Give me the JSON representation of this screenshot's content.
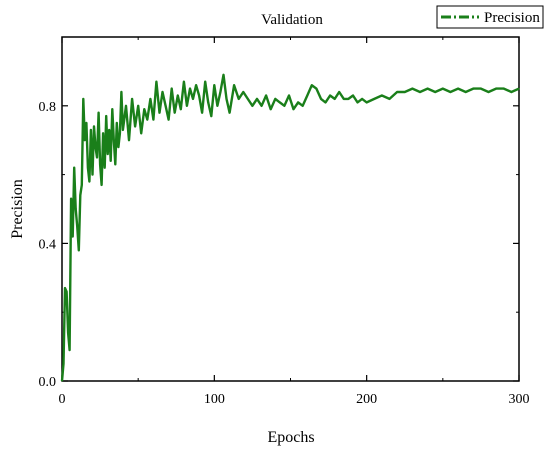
{
  "chart_data": {
    "type": "line",
    "title": "Validation",
    "xlabel": "Epochs",
    "ylabel": "Precision",
    "xlim": [
      0,
      300
    ],
    "ylim": [
      0.0,
      1.0
    ],
    "x_ticks": [
      0,
      100,
      200,
      300
    ],
    "y_ticks": [
      0.0,
      0.4,
      0.8
    ],
    "x_tick_labels": [
      "0",
      "100",
      "200",
      "300"
    ],
    "y_tick_labels": [
      "0.0",
      "0.4",
      "0.8"
    ],
    "grid": false,
    "legend_position": "top-right",
    "series": [
      {
        "name": "Precision",
        "color": "#1a7f1a",
        "line_style": "dash-dot",
        "x": [
          0,
          1,
          2,
          3,
          4,
          5,
          6,
          7,
          8,
          9,
          10,
          11,
          12,
          13,
          14,
          15,
          16,
          17,
          18,
          19,
          20,
          21,
          22,
          23,
          24,
          25,
          26,
          27,
          28,
          29,
          30,
          31,
          32,
          33,
          34,
          35,
          36,
          37,
          38,
          39,
          40,
          42,
          44,
          46,
          48,
          50,
          52,
          54,
          56,
          58,
          60,
          62,
          64,
          66,
          68,
          70,
          72,
          74,
          76,
          78,
          80,
          82,
          84,
          86,
          88,
          90,
          92,
          94,
          96,
          98,
          100,
          102,
          104,
          106,
          108,
          110,
          113,
          116,
          119,
          122,
          125,
          128,
          131,
          134,
          137,
          140,
          143,
          146,
          149,
          152,
          155,
          158,
          161,
          164,
          167,
          170,
          173,
          176,
          179,
          182,
          185,
          188,
          191,
          194,
          197,
          200,
          205,
          210,
          215,
          220,
          225,
          230,
          235,
          240,
          245,
          250,
          255,
          260,
          265,
          270,
          275,
          280,
          285,
          290,
          295,
          300
        ],
        "y": [
          0.0,
          0.05,
          0.27,
          0.26,
          0.14,
          0.09,
          0.53,
          0.42,
          0.62,
          0.5,
          0.45,
          0.38,
          0.54,
          0.57,
          0.82,
          0.7,
          0.75,
          0.62,
          0.58,
          0.73,
          0.6,
          0.74,
          0.68,
          0.65,
          0.78,
          0.63,
          0.57,
          0.72,
          0.62,
          0.77,
          0.66,
          0.73,
          0.64,
          0.79,
          0.7,
          0.63,
          0.75,
          0.68,
          0.72,
          0.84,
          0.73,
          0.8,
          0.7,
          0.82,
          0.74,
          0.8,
          0.72,
          0.79,
          0.76,
          0.82,
          0.76,
          0.87,
          0.78,
          0.84,
          0.8,
          0.76,
          0.85,
          0.78,
          0.83,
          0.79,
          0.87,
          0.8,
          0.85,
          0.82,
          0.86,
          0.83,
          0.78,
          0.87,
          0.81,
          0.77,
          0.86,
          0.8,
          0.84,
          0.89,
          0.82,
          0.78,
          0.86,
          0.82,
          0.84,
          0.82,
          0.8,
          0.82,
          0.8,
          0.83,
          0.79,
          0.82,
          0.81,
          0.8,
          0.83,
          0.79,
          0.81,
          0.8,
          0.83,
          0.86,
          0.85,
          0.82,
          0.81,
          0.83,
          0.82,
          0.84,
          0.82,
          0.82,
          0.83,
          0.81,
          0.82,
          0.81,
          0.82,
          0.83,
          0.82,
          0.84,
          0.84,
          0.85,
          0.84,
          0.85,
          0.84,
          0.85,
          0.84,
          0.85,
          0.84,
          0.85,
          0.85,
          0.84,
          0.85,
          0.85,
          0.84,
          0.85
        ]
      }
    ]
  }
}
